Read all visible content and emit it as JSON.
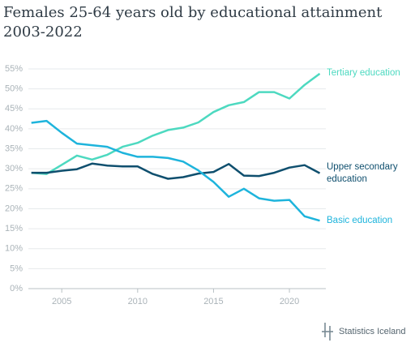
{
  "chart_data": {
    "type": "line",
    "title": "Females 25-64 years old by educational attainment 2003-2022",
    "x": [
      2003,
      2004,
      2005,
      2006,
      2007,
      2008,
      2009,
      2010,
      2011,
      2012,
      2013,
      2014,
      2015,
      2016,
      2017,
      2018,
      2019,
      2020,
      2021,
      2022
    ],
    "series": [
      {
        "name": "Tertiary education",
        "color": "#4dd9c0",
        "values": [
          29,
          28.7,
          31,
          33.3,
          32.3,
          33.5,
          35.5,
          36.5,
          38.3,
          39.7,
          40.3,
          41.6,
          44.2,
          45.9,
          46.7,
          49.2,
          49.2,
          47.6,
          51,
          53.8
        ]
      },
      {
        "name": "Upper secondary education",
        "color": "#0f4f6e",
        "values": [
          29,
          29,
          29.5,
          29.9,
          31.3,
          30.8,
          30.6,
          30.6,
          28.7,
          27.5,
          27.9,
          28.8,
          29.2,
          31.2,
          28.3,
          28.2,
          29,
          30.3,
          30.9,
          28.9
        ]
      },
      {
        "name": "Basic education",
        "color": "#1eb4dc",
        "values": [
          41.5,
          42,
          39,
          36.3,
          35.9,
          35.5,
          34,
          33,
          33,
          32.7,
          31.8,
          29.6,
          26.7,
          23,
          25,
          22.6,
          22,
          22.2,
          18.1,
          17
        ]
      }
    ],
    "xlim": [
      2002.8,
      2022.4
    ],
    "xticks": [
      2005,
      2010,
      2015,
      2020
    ],
    "ylim": [
      0,
      55
    ],
    "yticks": [
      {
        "value": 0,
        "label": "0%"
      },
      {
        "value": 5,
        "label": "5%"
      },
      {
        "value": 10,
        "label": "10%"
      },
      {
        "value": 15,
        "label": "15%"
      },
      {
        "value": 20,
        "label": "20%"
      },
      {
        "value": 25,
        "label": "25%"
      },
      {
        "value": 30,
        "label": "30%"
      },
      {
        "value": 35,
        "label": "35%"
      },
      {
        "value": 40,
        "label": "40%"
      },
      {
        "value": 45,
        "label": "45%"
      },
      {
        "value": 50,
        "label": "50%"
      },
      {
        "value": 55,
        "label": "55%"
      }
    ],
    "grid": true,
    "source": "Statistics Iceland"
  }
}
